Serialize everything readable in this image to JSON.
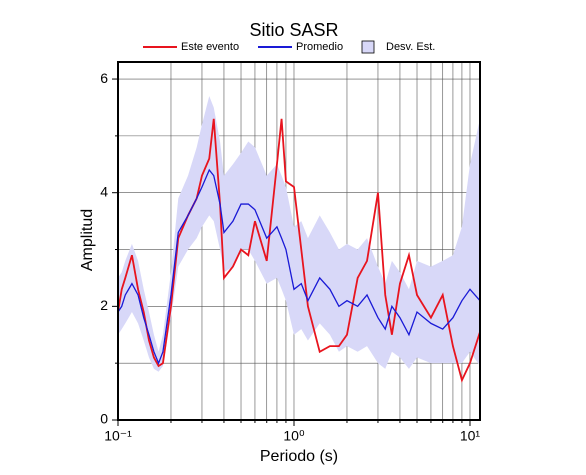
{
  "chart_data": {
    "type": "line",
    "title": "Sitio SASR",
    "xlabel": "Periodo (s)",
    "ylabel": "Amplitud",
    "xscale": "log",
    "xlim": [
      0.1,
      11.4
    ],
    "ylim": [
      0,
      6.3
    ],
    "xticks": [
      {
        "value": 0.1,
        "label": "10⁻¹"
      },
      {
        "value": 1,
        "label": "10⁰"
      },
      {
        "value": 10,
        "label": "10¹"
      }
    ],
    "minor_xticks": [
      0.2,
      0.3,
      0.4,
      0.5,
      0.6,
      0.7,
      0.8,
      0.9,
      2,
      3,
      4,
      5,
      6,
      7,
      8,
      9
    ],
    "yticks": [
      0,
      2,
      4,
      6
    ],
    "minor_yticks": [
      1,
      3,
      5
    ],
    "grid": true,
    "x": [
      0.1,
      0.105,
      0.11,
      0.12,
      0.13,
      0.14,
      0.15,
      0.16,
      0.17,
      0.18,
      0.2,
      0.22,
      0.25,
      0.28,
      0.3,
      0.33,
      0.35,
      0.38,
      0.4,
      0.45,
      0.5,
      0.55,
      0.6,
      0.7,
      0.8,
      0.85,
      0.9,
      1.0,
      1.1,
      1.2,
      1.4,
      1.6,
      1.8,
      2.0,
      2.3,
      2.6,
      3.0,
      3.3,
      3.6,
      4.0,
      4.5,
      5.0,
      6.0,
      7.0,
      8.0,
      9.0,
      10,
      11.4
    ],
    "band": {
      "name": "Desv. Est.",
      "color": "#d8d8f8",
      "upper": [
        2.5,
        2.6,
        2.8,
        3.1,
        2.8,
        2.3,
        1.9,
        1.5,
        1.2,
        1.5,
        2.6,
        3.9,
        4.3,
        4.8,
        5.2,
        5.7,
        5.5,
        4.9,
        4.3,
        4.5,
        4.7,
        4.9,
        4.8,
        4.3,
        4.5,
        4.3,
        4.1,
        3.4,
        3.5,
        3.2,
        3.6,
        3.3,
        3.0,
        3.1,
        3.0,
        3.2,
        2.7,
        2.4,
        2.8,
        2.6,
        2.3,
        2.8,
        2.7,
        2.8,
        2.9,
        3.4,
        4.5,
        5.3
      ],
      "lower": [
        1.5,
        1.6,
        1.7,
        1.9,
        1.7,
        1.4,
        1.1,
        0.9,
        0.85,
        0.95,
        1.8,
        2.7,
        3.0,
        3.2,
        3.4,
        3.6,
        3.5,
        3.0,
        2.6,
        2.7,
        3.0,
        3.0,
        2.8,
        2.4,
        2.5,
        2.3,
        2.1,
        1.5,
        1.6,
        1.4,
        1.7,
        1.5,
        1.2,
        1.3,
        1.2,
        1.3,
        1.0,
        0.9,
        1.2,
        1.1,
        0.9,
        1.1,
        1.0,
        1.0,
        1.0,
        1.0,
        1.2,
        0.95
      ]
    },
    "series": [
      {
        "name": "Este evento",
        "color": "#e8141e",
        "values": [
          1.9,
          2.3,
          2.5,
          2.9,
          2.3,
          1.9,
          1.4,
          1.1,
          0.95,
          1.0,
          2.0,
          3.2,
          3.6,
          3.9,
          4.3,
          4.6,
          5.3,
          3.8,
          2.5,
          2.7,
          3.0,
          2.9,
          3.5,
          2.8,
          4.5,
          5.3,
          4.2,
          4.1,
          3.0,
          2.0,
          1.2,
          1.3,
          1.3,
          1.5,
          2.5,
          2.8,
          4.0,
          2.2,
          1.5,
          2.4,
          2.9,
          2.2,
          1.8,
          2.2,
          1.3,
          0.7,
          1.0,
          1.55
        ]
      },
      {
        "name": "Promedio",
        "color": "#1a1ad6",
        "values": [
          1.9,
          2.0,
          2.2,
          2.4,
          2.2,
          1.8,
          1.5,
          1.2,
          1.0,
          1.2,
          2.2,
          3.3,
          3.6,
          3.9,
          4.1,
          4.4,
          4.3,
          3.8,
          3.3,
          3.5,
          3.8,
          3.8,
          3.7,
          3.2,
          3.4,
          3.2,
          3.0,
          2.3,
          2.4,
          2.1,
          2.5,
          2.3,
          2.0,
          2.1,
          2.0,
          2.2,
          1.8,
          1.6,
          2.0,
          1.8,
          1.5,
          1.9,
          1.7,
          1.6,
          1.8,
          2.1,
          2.3,
          2.1
        ]
      }
    ]
  }
}
